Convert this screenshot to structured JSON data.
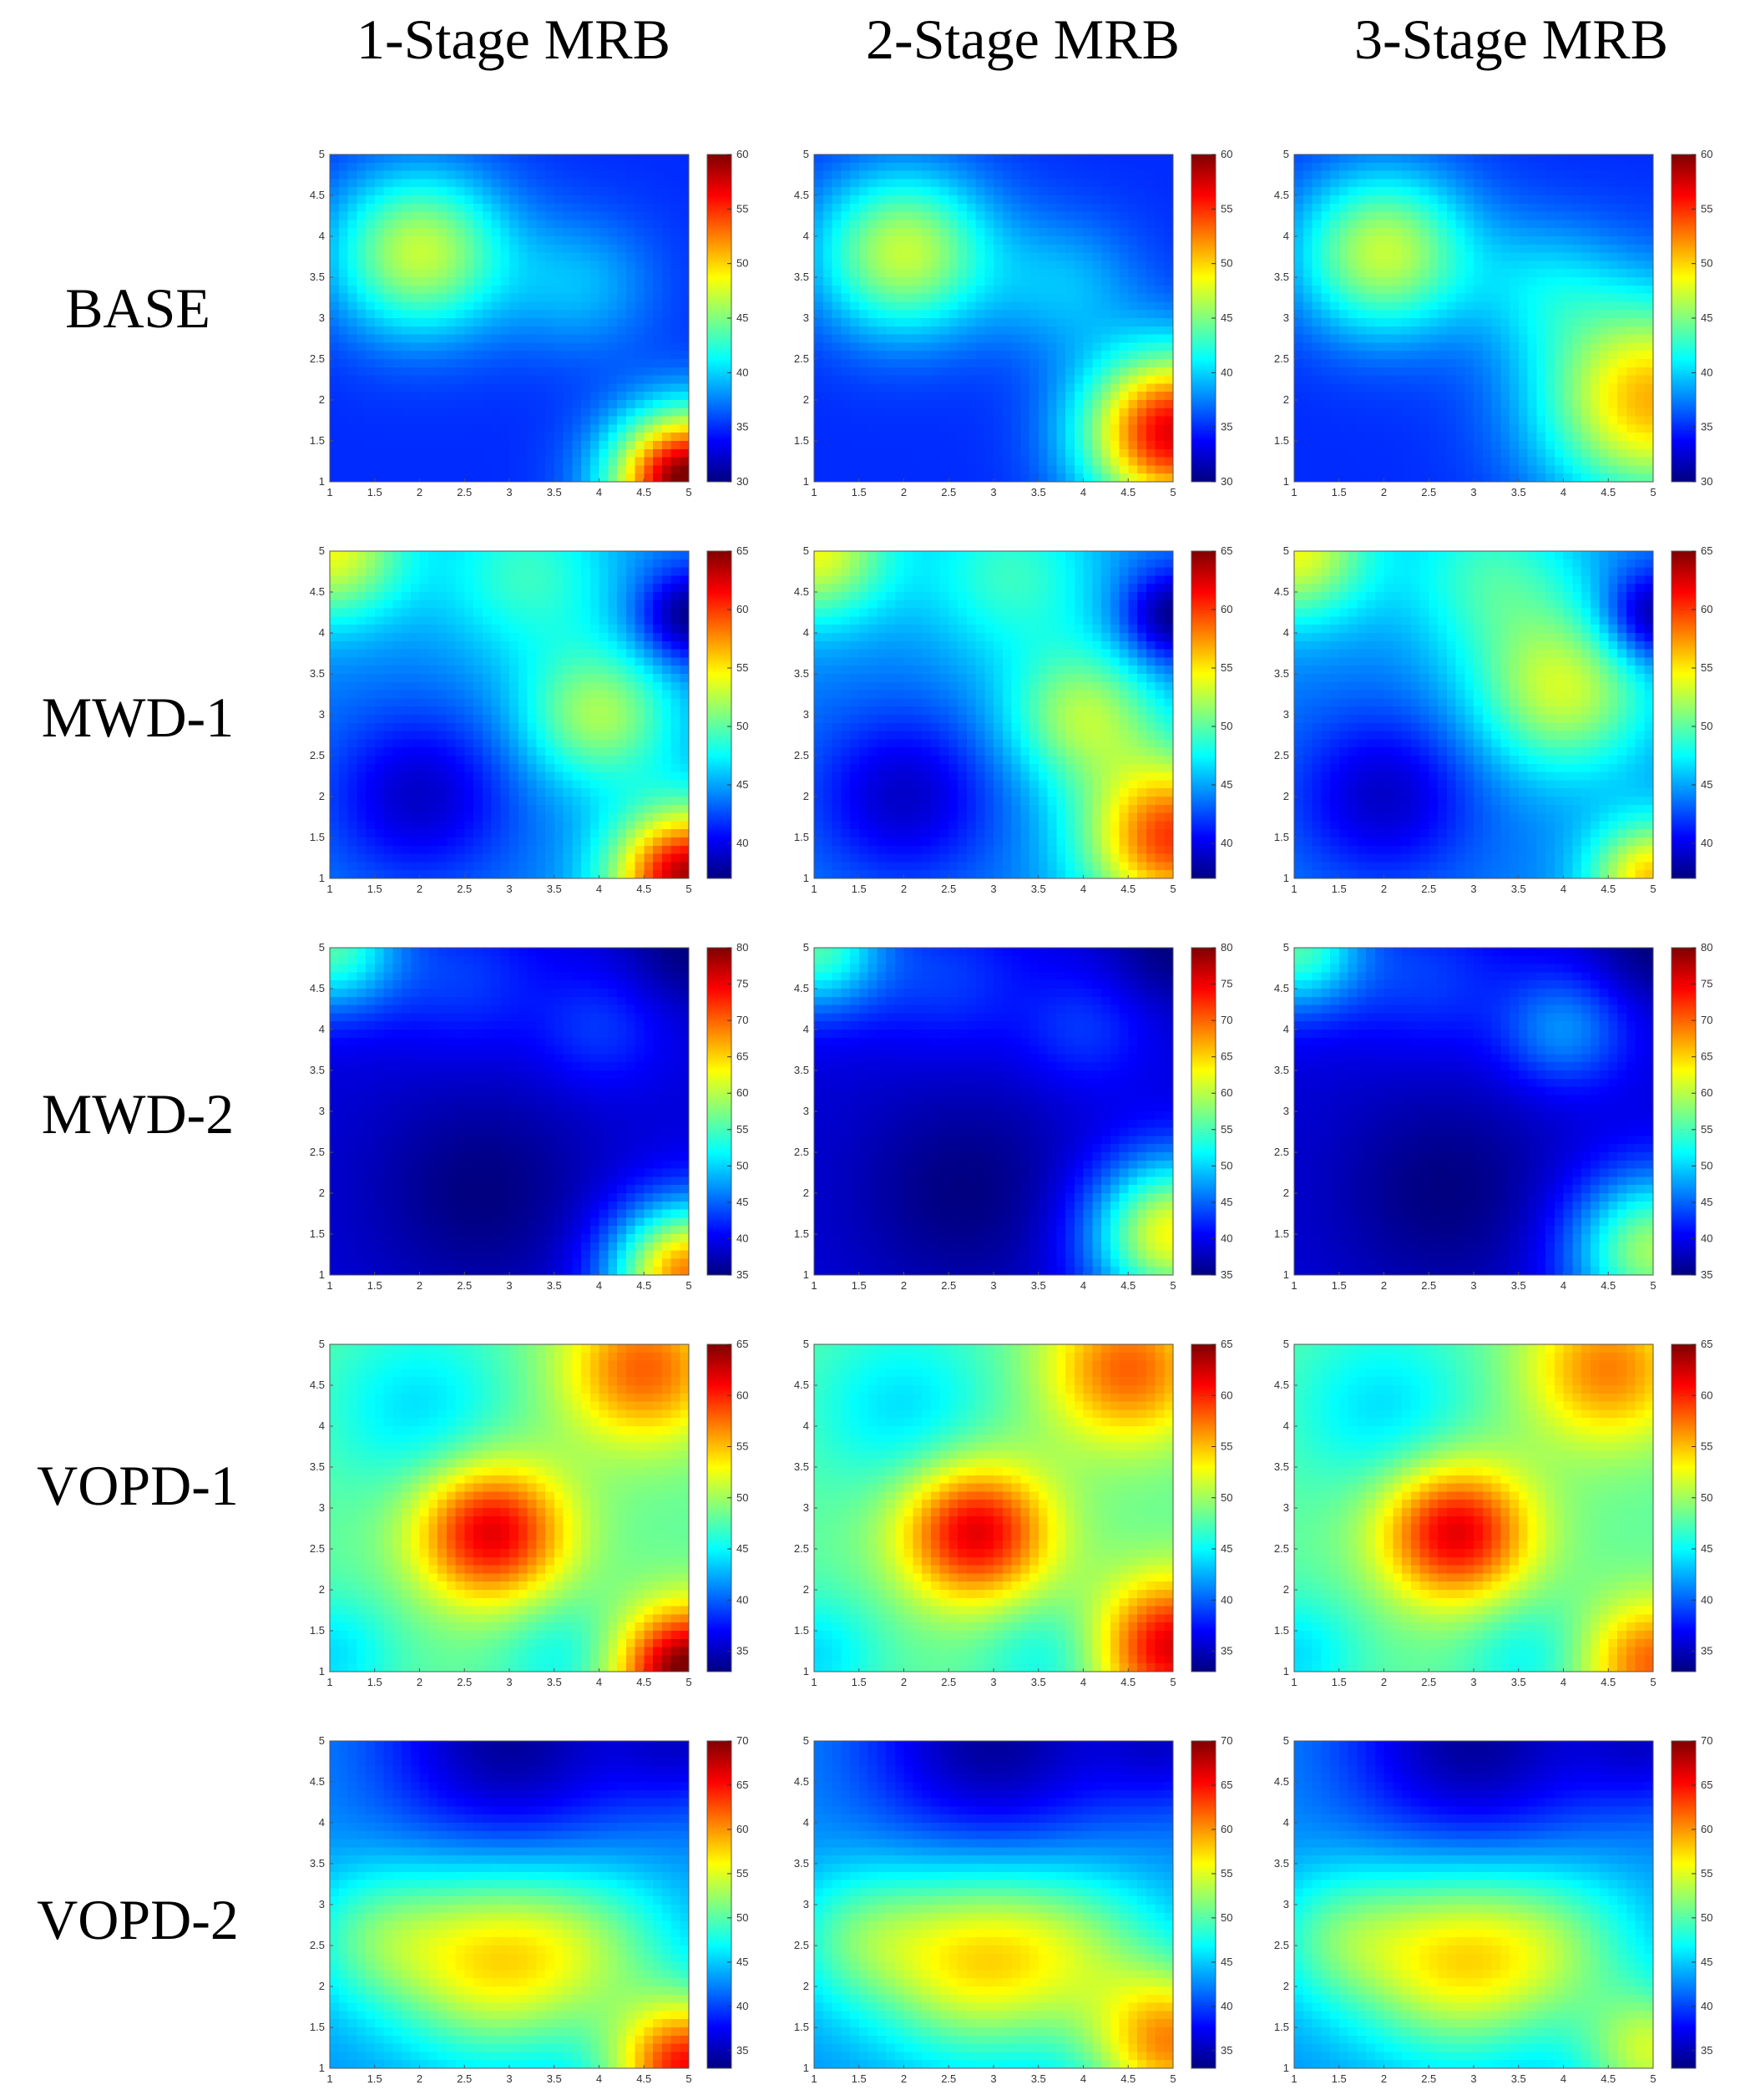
{
  "columns": [
    "1-Stage MRB",
    "2-Stage MRB",
    "3-Stage MRB"
  ],
  "rows": [
    "BASE",
    "MWD-1",
    "MWD-2",
    "VOPD-1",
    "VOPD-2"
  ],
  "colormap": "jet",
  "chart_data": {
    "type": "heatmap",
    "axes": {
      "x_ticks": [
        "1",
        "1.5",
        "2",
        "2.5",
        "3",
        "3.5",
        "4",
        "4.5",
        "5"
      ],
      "y_ticks": [
        "1",
        "1.5",
        "2",
        "2.5",
        "3",
        "3.5",
        "4",
        "4.5",
        "5"
      ],
      "xlim": [
        1,
        5
      ],
      "ylim": [
        1,
        5
      ]
    },
    "panels": [
      {
        "row": "BASE",
        "column": "1-Stage MRB",
        "clim": [
          30,
          60
        ],
        "colorbar_ticks": [
          "30",
          "35",
          "40",
          "45",
          "50",
          "55",
          "60"
        ],
        "baseline": 35,
        "hotspots": [
          {
            "x": 2,
            "y": 3.8,
            "amp": 12,
            "r": 0.7
          },
          {
            "x": 5,
            "y": 1,
            "amp": 26,
            "r": 0.6
          },
          {
            "x": 3.8,
            "y": 3.4,
            "amp": 4,
            "r": 0.6
          }
        ]
      },
      {
        "row": "BASE",
        "column": "2-Stage MRB",
        "clim": [
          30,
          60
        ],
        "colorbar_ticks": [
          "30",
          "35",
          "40",
          "45",
          "50",
          "55",
          "60"
        ],
        "baseline": 35,
        "hotspots": [
          {
            "x": 2,
            "y": 3.8,
            "amp": 12,
            "r": 0.7
          },
          {
            "x": 5,
            "y": 1.6,
            "amp": 22,
            "r": 0.7
          },
          {
            "x": 3.8,
            "y": 3.4,
            "amp": 4,
            "r": 0.6
          }
        ]
      },
      {
        "row": "BASE",
        "column": "3-Stage MRB",
        "clim": [
          30,
          60
        ],
        "colorbar_ticks": [
          "30",
          "35",
          "40",
          "45",
          "50",
          "55",
          "60"
        ],
        "baseline": 35,
        "hotspots": [
          {
            "x": 2,
            "y": 3.8,
            "amp": 12,
            "r": 0.7
          },
          {
            "x": 5,
            "y": 2,
            "amp": 16,
            "r": 0.9
          },
          {
            "x": 3.8,
            "y": 3.4,
            "amp": 4,
            "r": 0.6
          }
        ]
      },
      {
        "row": "MWD-1",
        "column": "1-Stage MRB",
        "clim": [
          37,
          65
        ],
        "colorbar_ticks": [
          "40",
          "45",
          "50",
          "55",
          "60",
          "65"
        ],
        "baseline": 44,
        "hotspots": [
          {
            "x": 1,
            "y": 5,
            "amp": 10,
            "r": 0.6
          },
          {
            "x": 3.2,
            "y": 4.7,
            "amp": 5,
            "r": 0.7
          },
          {
            "x": 4,
            "y": 3,
            "amp": 8,
            "r": 0.6
          },
          {
            "x": 5,
            "y": 1,
            "amp": 20,
            "r": 0.6
          },
          {
            "x": 2,
            "y": 2,
            "amp": -5,
            "r": 0.7
          },
          {
            "x": 5,
            "y": 4.2,
            "amp": -7,
            "r": 0.4
          }
        ]
      },
      {
        "row": "MWD-1",
        "column": "2-Stage MRB",
        "clim": [
          37,
          65
        ],
        "colorbar_ticks": [
          "40",
          "45",
          "50",
          "55",
          "60",
          "65"
        ],
        "baseline": 44,
        "hotspots": [
          {
            "x": 1,
            "y": 5,
            "amp": 10,
            "r": 0.6
          },
          {
            "x": 3.2,
            "y": 4.7,
            "amp": 5,
            "r": 0.7
          },
          {
            "x": 4,
            "y": 3,
            "amp": 8,
            "r": 0.6
          },
          {
            "x": 5,
            "y": 1.5,
            "amp": 16,
            "r": 0.7
          },
          {
            "x": 2,
            "y": 2,
            "amp": -5,
            "r": 0.7
          },
          {
            "x": 5,
            "y": 4.2,
            "amp": -7,
            "r": 0.4
          }
        ]
      },
      {
        "row": "MWD-1",
        "column": "3-Stage MRB",
        "clim": [
          37,
          65
        ],
        "colorbar_ticks": [
          "40",
          "45",
          "50",
          "55",
          "60",
          "65"
        ],
        "baseline": 44,
        "hotspots": [
          {
            "x": 1,
            "y": 5,
            "amp": 10,
            "r": 0.6
          },
          {
            "x": 3.2,
            "y": 4.7,
            "amp": 5,
            "r": 0.7
          },
          {
            "x": 4,
            "y": 3.3,
            "amp": 9,
            "r": 0.7
          },
          {
            "x": 5,
            "y": 1,
            "amp": 12,
            "r": 0.5
          },
          {
            "x": 2,
            "y": 2,
            "amp": -5,
            "r": 0.7
          },
          {
            "x": 5,
            "y": 4.2,
            "amp": -7,
            "r": 0.4
          }
        ]
      },
      {
        "row": "MWD-2",
        "column": "1-Stage MRB",
        "clim": [
          35,
          80
        ],
        "colorbar_ticks": [
          "35",
          "40",
          "45",
          "50",
          "55",
          "60",
          "65",
          "70",
          "75",
          "80"
        ],
        "baseline": 39,
        "hotspots": [
          {
            "x": 1,
            "y": 5,
            "amp": 16,
            "r": 0.55
          },
          {
            "x": 2.5,
            "y": 4.6,
            "amp": 4,
            "r": 0.6
          },
          {
            "x": 4,
            "y": 4,
            "amp": 4,
            "r": 0.5
          },
          {
            "x": 5,
            "y": 1,
            "amp": 30,
            "r": 0.6
          },
          {
            "x": 2.7,
            "y": 2,
            "amp": -4,
            "r": 0.9
          },
          {
            "x": 5,
            "y": 5,
            "amp": -4,
            "r": 0.5
          }
        ]
      },
      {
        "row": "MWD-2",
        "column": "2-Stage MRB",
        "clim": [
          35,
          80
        ],
        "colorbar_ticks": [
          "35",
          "40",
          "45",
          "50",
          "55",
          "60",
          "65",
          "70",
          "75",
          "80"
        ],
        "baseline": 39,
        "hotspots": [
          {
            "x": 1,
            "y": 5,
            "amp": 16,
            "r": 0.55
          },
          {
            "x": 2.5,
            "y": 4.6,
            "amp": 4,
            "r": 0.6
          },
          {
            "x": 4,
            "y": 4,
            "amp": 4,
            "r": 0.5
          },
          {
            "x": 5,
            "y": 1.5,
            "amp": 24,
            "r": 0.65
          },
          {
            "x": 2.7,
            "y": 2,
            "amp": -4,
            "r": 0.9
          },
          {
            "x": 5,
            "y": 5,
            "amp": -4,
            "r": 0.5
          }
        ]
      },
      {
        "row": "MWD-2",
        "column": "3-Stage MRB",
        "clim": [
          35,
          80
        ],
        "colorbar_ticks": [
          "35",
          "40",
          "45",
          "50",
          "55",
          "60",
          "65",
          "70",
          "75",
          "80"
        ],
        "baseline": 39,
        "hotspots": [
          {
            "x": 1,
            "y": 5,
            "amp": 16,
            "r": 0.55
          },
          {
            "x": 2.5,
            "y": 4.6,
            "amp": 4,
            "r": 0.6
          },
          {
            "x": 4,
            "y": 4,
            "amp": 8,
            "r": 0.5
          },
          {
            "x": 5,
            "y": 1.3,
            "amp": 20,
            "r": 0.65
          },
          {
            "x": 2.7,
            "y": 2,
            "amp": -4,
            "r": 0.9
          },
          {
            "x": 5,
            "y": 5,
            "amp": -4,
            "r": 0.5
          }
        ]
      },
      {
        "row": "VOPD-1",
        "column": "1-Stage MRB",
        "clim": [
          33,
          65
        ],
        "colorbar_ticks": [
          "35",
          "40",
          "45",
          "50",
          "55",
          "60",
          "65"
        ],
        "baseline": 48,
        "hotspots": [
          {
            "x": 2.8,
            "y": 2.7,
            "amp": 14,
            "r": 0.6
          },
          {
            "x": 4.5,
            "y": 4.7,
            "amp": 10,
            "r": 0.65
          },
          {
            "x": 5,
            "y": 1,
            "amp": 18,
            "r": 0.55
          },
          {
            "x": 2,
            "y": 4.2,
            "amp": -4,
            "r": 0.7
          },
          {
            "x": 1,
            "y": 1.2,
            "amp": -4,
            "r": 0.5
          },
          {
            "x": 3.6,
            "y": 1.2,
            "amp": -3,
            "r": 0.5
          }
        ]
      },
      {
        "row": "VOPD-1",
        "column": "2-Stage MRB",
        "clim": [
          33,
          65
        ],
        "colorbar_ticks": [
          "35",
          "40",
          "45",
          "50",
          "55",
          "60",
          "65"
        ],
        "baseline": 48,
        "hotspots": [
          {
            "x": 2.8,
            "y": 2.7,
            "amp": 14,
            "r": 0.6
          },
          {
            "x": 4.5,
            "y": 4.7,
            "amp": 10,
            "r": 0.65
          },
          {
            "x": 5,
            "y": 1.3,
            "amp": 14,
            "r": 0.6
          },
          {
            "x": 2,
            "y": 4.2,
            "amp": -4,
            "r": 0.7
          },
          {
            "x": 1,
            "y": 1.2,
            "amp": -4,
            "r": 0.5
          },
          {
            "x": 3.6,
            "y": 1.2,
            "amp": -3,
            "r": 0.5
          }
        ]
      },
      {
        "row": "VOPD-1",
        "column": "3-Stage MRB",
        "clim": [
          33,
          65
        ],
        "colorbar_ticks": [
          "35",
          "40",
          "45",
          "50",
          "55",
          "60",
          "65"
        ],
        "baseline": 48,
        "hotspots": [
          {
            "x": 2.8,
            "y": 2.7,
            "amp": 14,
            "r": 0.6
          },
          {
            "x": 4.5,
            "y": 4.7,
            "amp": 9,
            "r": 0.65
          },
          {
            "x": 5,
            "y": 1.1,
            "amp": 10,
            "r": 0.55
          },
          {
            "x": 2,
            "y": 4.2,
            "amp": -4,
            "r": 0.7
          },
          {
            "x": 1,
            "y": 1.2,
            "amp": -4,
            "r": 0.5
          },
          {
            "x": 3.6,
            "y": 1.2,
            "amp": -3,
            "r": 0.5
          }
        ]
      },
      {
        "row": "VOPD-2",
        "column": "1-Stage MRB",
        "clim": [
          33,
          70
        ],
        "colorbar_ticks": [
          "35",
          "40",
          "45",
          "50",
          "55",
          "60",
          "65",
          "70"
        ],
        "baseline": 43,
        "hotspots": [
          {
            "x": 2.8,
            "y": 2.3,
            "amp": 13,
            "r": 0.8
          },
          {
            "x": 1.5,
            "y": 2.6,
            "amp": 6,
            "r": 0.6
          },
          {
            "x": 4,
            "y": 2.5,
            "amp": 6,
            "r": 0.7
          },
          {
            "x": 5,
            "y": 1,
            "amp": 22,
            "r": 0.6
          },
          {
            "x": 3,
            "y": 5,
            "amp": -9,
            "r": 1.0
          },
          {
            "x": 5,
            "y": 5,
            "amp": -6,
            "r": 0.6
          }
        ]
      },
      {
        "row": "VOPD-2",
        "column": "2-Stage MRB",
        "clim": [
          33,
          70
        ],
        "colorbar_ticks": [
          "35",
          "40",
          "45",
          "50",
          "55",
          "60",
          "65",
          "70"
        ],
        "baseline": 43,
        "hotspots": [
          {
            "x": 2.8,
            "y": 2.3,
            "amp": 13,
            "r": 0.8
          },
          {
            "x": 1.5,
            "y": 2.6,
            "amp": 6,
            "r": 0.6
          },
          {
            "x": 4,
            "y": 2.5,
            "amp": 6,
            "r": 0.7
          },
          {
            "x": 5,
            "y": 1.3,
            "amp": 17,
            "r": 0.65
          },
          {
            "x": 3,
            "y": 5,
            "amp": -9,
            "r": 1.0
          },
          {
            "x": 5,
            "y": 5,
            "amp": -6,
            "r": 0.6
          }
        ]
      },
      {
        "row": "VOPD-2",
        "column": "3-Stage MRB",
        "clim": [
          33,
          70
        ],
        "colorbar_ticks": [
          "35",
          "40",
          "45",
          "50",
          "55",
          "60",
          "65",
          "70"
        ],
        "baseline": 43,
        "hotspots": [
          {
            "x": 2.8,
            "y": 2.3,
            "amp": 13,
            "r": 0.8
          },
          {
            "x": 1.5,
            "y": 2.6,
            "amp": 6,
            "r": 0.6
          },
          {
            "x": 4,
            "y": 2.5,
            "amp": 6,
            "r": 0.7
          },
          {
            "x": 5,
            "y": 1.2,
            "amp": 11,
            "r": 0.55
          },
          {
            "x": 3,
            "y": 5,
            "amp": -9,
            "r": 1.0
          },
          {
            "x": 5,
            "y": 5,
            "amp": -6,
            "r": 0.6
          }
        ]
      }
    ]
  }
}
